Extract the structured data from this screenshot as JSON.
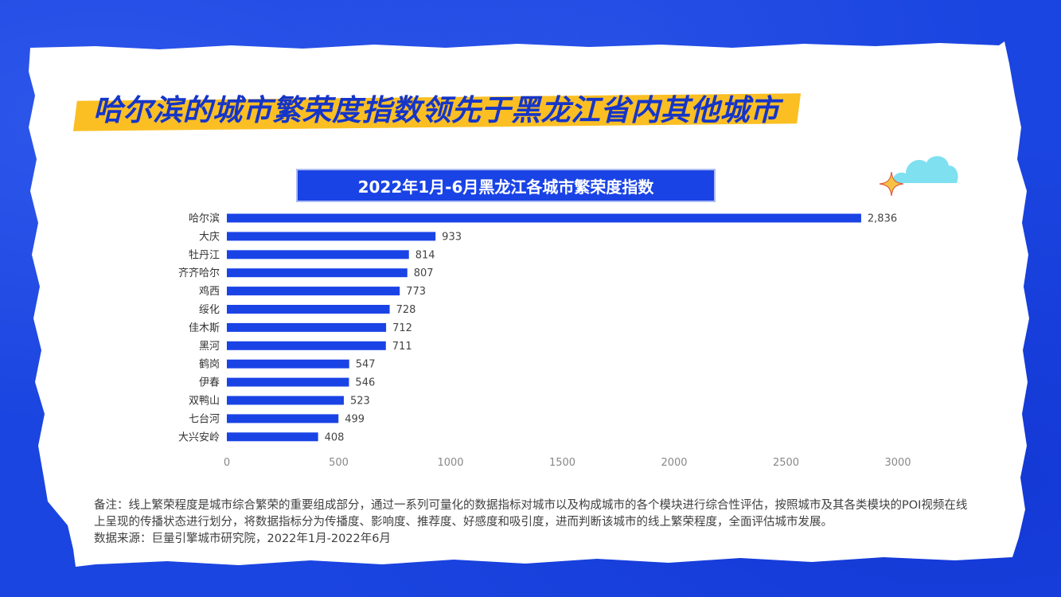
{
  "page": {
    "title": "哈尔滨的城市繁荣度指数领先于黑龙江省内其他城市",
    "note": "备注：线上繁荣程度是城市综合繁荣的重要组成部分，通过一系列可量化的数据指标对城市以及构成城市的各个模块进行综合性评估，按照城市及其各类模块的POI视频在线上呈现的传播状态进行划分，将数据指标分为传播度、影响度、推荐度、好感度和吸引度，进而判断该城市的线上繁荣程度，全面评估城市发展。",
    "source": "数据来源：巨量引擎城市研究院，2022年1月-2022年6月"
  },
  "colors": {
    "background": "#1b45e0",
    "paper": "#ffffff",
    "highlight": "#fbbf24",
    "title_text": "#1535c9",
    "bar": "#1a43e6",
    "cloud": "#7fe0f0"
  },
  "decorations": [
    "cloud-icon",
    "sparkle-icon"
  ],
  "chart_data": {
    "type": "bar",
    "orientation": "horizontal",
    "title": "2022年1月-6月黑龙江各城市繁荣度指数",
    "categories": [
      "哈尔滨",
      "大庆",
      "牡丹江",
      "齐齐哈尔",
      "鸡西",
      "绥化",
      "佳木斯",
      "黑河",
      "鹤岗",
      "伊春",
      "双鸭山",
      "七台河",
      "大兴安岭"
    ],
    "values": [
      2836,
      933,
      814,
      807,
      773,
      728,
      712,
      711,
      547,
      546,
      523,
      499,
      408
    ],
    "value_labels": [
      "2,836",
      "933",
      "814",
      "807",
      "773",
      "728",
      "712",
      "711",
      "547",
      "546",
      "523",
      "499",
      "408"
    ],
    "xlim": [
      0,
      3000
    ],
    "xticks": [
      0,
      500,
      1000,
      1500,
      2000,
      2500,
      3000
    ],
    "xtick_labels": [
      "0",
      "500",
      "1000",
      "1500",
      "2000",
      "2500",
      "3000"
    ],
    "grid": false,
    "legend": "none"
  }
}
